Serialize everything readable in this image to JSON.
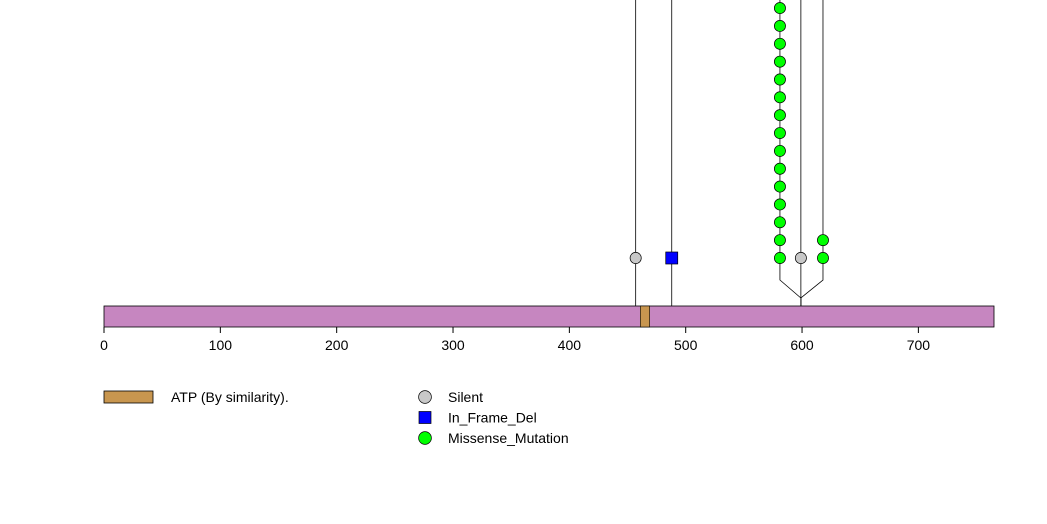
{
  "chart_data": {
    "type": "lollipop",
    "title": "",
    "xlabel": "",
    "ylabel": "",
    "xlim": [
      0,
      765
    ],
    "x_ticks": [
      0,
      100,
      200,
      300,
      400,
      500,
      600,
      700
    ],
    "protein_length": 765,
    "domains": [
      {
        "name": "ATP (By similarity).",
        "start": 461,
        "end": 469,
        "color": "#c8964f"
      }
    ],
    "protein_color": "#c686c0",
    "mutation_types": [
      {
        "name": "Silent",
        "shape": "circle",
        "color": "#c8c8c8"
      },
      {
        "name": "In_Frame_Del",
        "shape": "square",
        "color": "#0000ff"
      },
      {
        "name": "Missense_Mutation",
        "shape": "circle",
        "color": "#00ff00"
      }
    ],
    "lollipops": [
      {
        "position": 457,
        "display_position": 457,
        "type": "Silent",
        "count": 1,
        "stem_overflow": true
      },
      {
        "position": 488,
        "display_position": 488,
        "type": "In_Frame_Del",
        "count": 1,
        "stem_overflow": true
      },
      {
        "position": 599,
        "display_position": 581,
        "type": "Missense_Mutation",
        "count": 15,
        "stem_overflow": true
      },
      {
        "position": 599,
        "display_position": 599,
        "type": "Silent",
        "count": 1,
        "stem_overflow": true
      },
      {
        "position": 599,
        "display_position": 618,
        "type": "Missense_Mutation",
        "count": 2,
        "stem_overflow": true
      }
    ],
    "legend": {
      "domains": [
        "ATP (By similarity)."
      ],
      "mutations": [
        "Silent",
        "In_Frame_Del",
        "Missense_Mutation"
      ]
    }
  }
}
